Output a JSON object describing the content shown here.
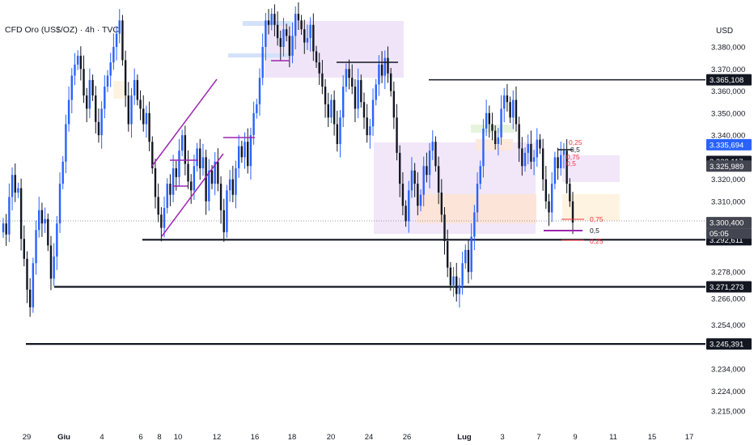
{
  "chart_title": "CFD Oro (US$/OZ) · 4h · TVC",
  "currency": "USD",
  "chart_data": {
    "type": "candlestick",
    "ylim": [
      3208000,
      3392000
    ],
    "y_ticks": [
      "3.380,000",
      "3.370,000",
      "3.360,000",
      "3.350,000",
      "3.340,000",
      "3.320,000",
      "3.310,000",
      "3.278,000",
      "3.266,000",
      "3.254,000",
      "3.234,000",
      "3.224,000",
      "3.215,000"
    ],
    "y_tick_values": [
      3380000,
      3370000,
      3360000,
      3350000,
      3340000,
      3320000,
      3310000,
      3278000,
      3266000,
      3254000,
      3234000,
      3224000,
      3215000
    ],
    "x_ticks": [
      "29",
      "Giu",
      "4",
      "6",
      "8",
      "10",
      "12",
      "16",
      "18",
      "20",
      "24",
      "26",
      "Lug",
      "3",
      "7",
      "9",
      "11",
      "15",
      "17"
    ],
    "x_ticks_bold": [
      "Giu",
      "Lug"
    ],
    "levels": [
      {
        "label": "3.365,108",
        "value": 3365108,
        "color": "#131722"
      },
      {
        "label": "3.292,611",
        "value": 3292611,
        "color": "#131722"
      },
      {
        "label": "3.271,273",
        "value": 3271273,
        "color": "#131722"
      },
      {
        "label": "3.245,391",
        "value": 3245391,
        "color": "#131722"
      }
    ],
    "price_labels": [
      {
        "label": "3.335,694",
        "value": 3335694,
        "color": "#2962ff"
      },
      {
        "label": "3.328,117",
        "value": 3328117,
        "color": "#131722"
      },
      {
        "label": "3.325,989",
        "value": 3325989,
        "color": "#434651"
      },
      {
        "label": "3.300,400",
        "value": 3300400,
        "color": "#434651"
      }
    ],
    "countdown": "05:05",
    "fib_labels": [
      {
        "text": "0,25",
        "color": "red"
      },
      {
        "text": "0,5",
        "color": "black"
      },
      {
        "text": "0,75",
        "color": "red"
      },
      {
        "text": "0,5",
        "color": "red"
      },
      {
        "text": "0,75",
        "color": "red"
      },
      {
        "text": "0,5",
        "color": "black"
      },
      {
        "text": "0,25",
        "color": "red"
      }
    ],
    "candles_close": [
      3300000,
      3295000,
      3312000,
      3322000,
      3314000,
      3316000,
      3293000,
      3284000,
      3270000,
      3262000,
      3282000,
      3297000,
      3306000,
      3300000,
      3302000,
      3290000,
      3275000,
      3285000,
      3300000,
      3318000,
      3328000,
      3345000,
      3356000,
      3367000,
      3372000,
      3376000,
      3370000,
      3358000,
      3352000,
      3365000,
      3358000,
      3346000,
      3340000,
      3352000,
      3362000,
      3367000,
      3373000,
      3380000,
      3386000,
      3392000,
      3374000,
      3358000,
      3345000,
      3358000,
      3365000,
      3356000,
      3352000,
      3345000,
      3350000,
      3337000,
      3325000,
      3312000,
      3304000,
      3298000,
      3307000,
      3318000,
      3313000,
      3325000,
      3321000,
      3333000,
      3340000,
      3327000,
      3319000,
      3315000,
      3326000,
      3334000,
      3325000,
      3330000,
      3310000,
      3324000,
      3318000,
      3328000,
      3318000,
      3306000,
      3296000,
      3315000,
      3320000,
      3313000,
      3325000,
      3335000,
      3330000,
      3337000,
      3326000,
      3340000,
      3350000,
      3354000,
      3366000,
      3380000,
      3392000,
      3390000,
      3395000,
      3390000,
      3384000,
      3380000,
      3388000,
      3385000,
      3376000,
      3385000,
      3395000,
      3392000,
      3388000,
      3382000,
      3384000,
      3390000,
      3378000,
      3373000,
      3368000,
      3362000,
      3354000,
      3348000,
      3356000,
      3345000,
      3336000,
      3348000,
      3362000,
      3370000,
      3366000,
      3362000,
      3352000,
      3365000,
      3355000,
      3348000,
      3340000,
      3344000,
      3356000,
      3363000,
      3372000,
      3367000,
      3375000,
      3368000,
      3360000,
      3348000,
      3332000,
      3318000,
      3308000,
      3301000,
      3315000,
      3324000,
      3318000,
      3308000,
      3313000,
      3326000,
      3322000,
      3333000,
      3337000,
      3326000,
      3314000,
      3304000,
      3292000,
      3280000,
      3272000,
      3276000,
      3268000,
      3272000,
      3282000,
      3288000,
      3278000,
      3294000,
      3305000,
      3318000,
      3326000,
      3343000,
      3350000,
      3345000,
      3342000,
      3336000,
      3339000,
      3352000,
      3358000,
      3355000,
      3348000,
      3356000,
      3345000,
      3334000,
      3326000,
      3332000,
      3336000,
      3328000,
      3330000,
      3338000,
      3334000,
      3320000,
      3310000,
      3305000,
      3318000,
      3330000,
      3325000,
      3331000,
      3333000,
      3318000,
      3310000,
      3300400
    ]
  }
}
